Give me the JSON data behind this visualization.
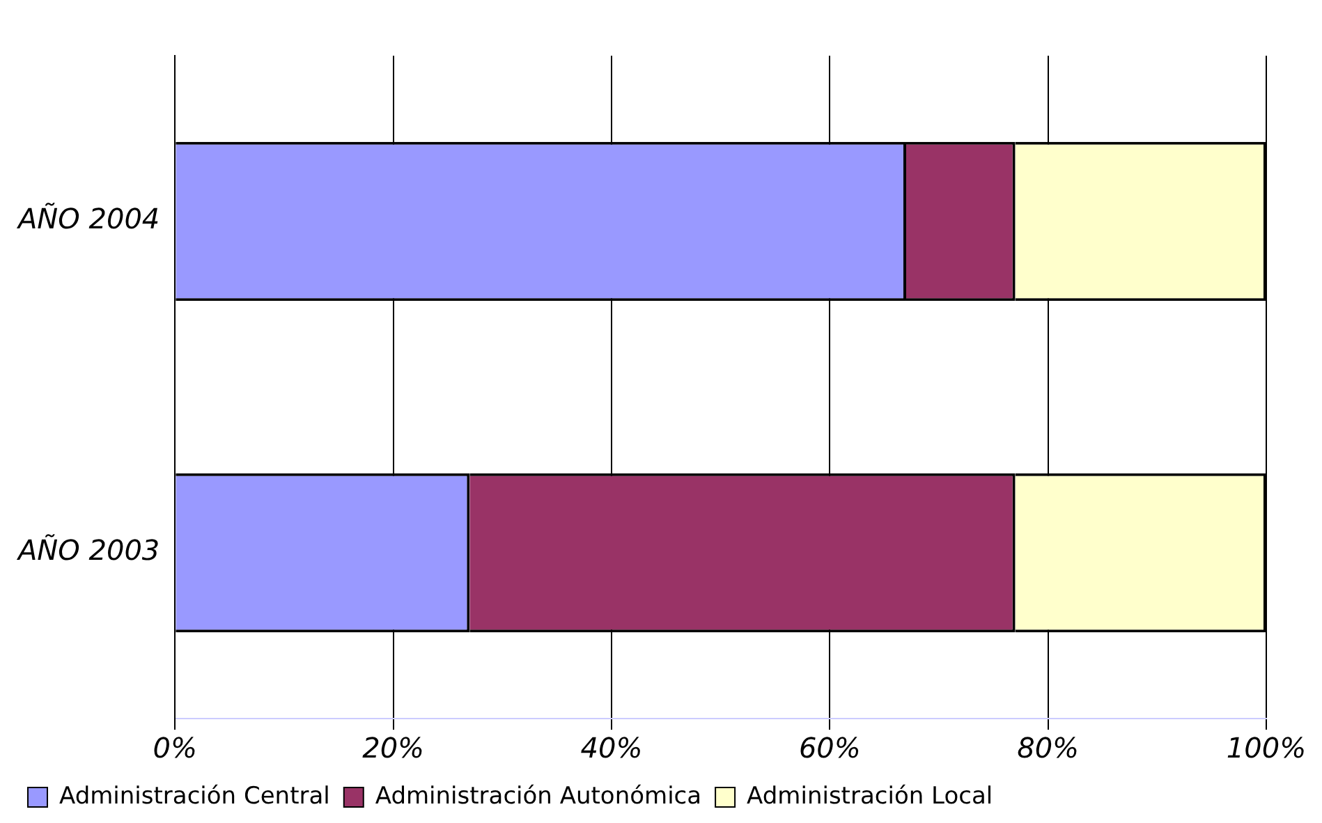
{
  "chart_data": {
    "type": "bar",
    "orientation": "horizontal",
    "stacked": true,
    "categories": [
      "AÑO 2004",
      "AÑO 2003"
    ],
    "series": [
      {
        "name": "Administración Central",
        "color": "#9999ff",
        "values": [
          67,
          27
        ]
      },
      {
        "name": "Administración Autonómica",
        "color": "#993366",
        "values": [
          10,
          50
        ]
      },
      {
        "name": "Administración Local",
        "color": "#ffffcc",
        "values": [
          23,
          23
        ]
      }
    ],
    "xlim": [
      0,
      100
    ],
    "xticks": [
      {
        "value": 0,
        "label": "0%"
      },
      {
        "value": 20,
        "label": "20%"
      },
      {
        "value": 40,
        "label": "40%"
      },
      {
        "value": 60,
        "label": "60%"
      },
      {
        "value": 80,
        "label": "80%"
      },
      {
        "value": 100,
        "label": "100%"
      }
    ],
    "grid": "x",
    "legend": "bottom left"
  }
}
